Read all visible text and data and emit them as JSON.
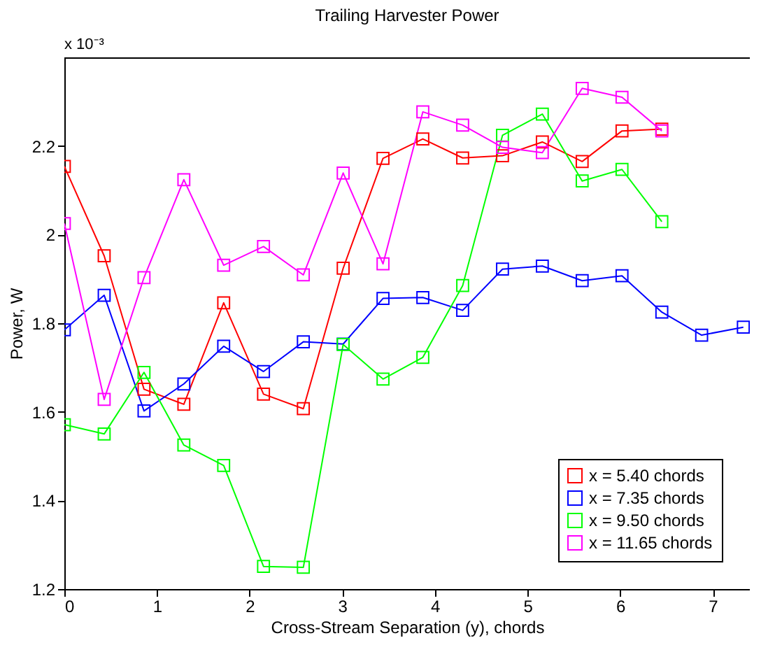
{
  "chart_data": {
    "type": "line",
    "title": "Trailing Harvester Power",
    "xlabel": "Cross-Stream Separation (y), chords",
    "ylabel": "Power, W",
    "annotations": [
      "x 10⁻³"
    ],
    "xlim": [
      0,
      7.4
    ],
    "xticks": [
      0,
      1,
      2,
      3,
      4,
      5,
      6,
      7
    ],
    "ylim": [
      1.2,
      2.4
    ],
    "yticks": [
      1.2,
      1.4,
      1.6,
      1.8,
      2,
      2.2
    ],
    "grid": false,
    "legend": "bottom right",
    "marker": "square",
    "line_style": "solid",
    "series": [
      {
        "name": "x = 5.40 chords",
        "color": "#ff0000",
        "x": [
          0,
          0.43,
          0.86,
          1.29,
          1.72,
          2.15,
          2.58,
          3.01,
          3.44,
          3.87,
          4.3,
          4.73,
          5.16,
          5.59,
          6.02,
          6.45
        ],
        "values": [
          2.154,
          1.952,
          1.651,
          1.617,
          1.846,
          1.64,
          1.607,
          1.924,
          2.172,
          2.216,
          2.173,
          2.178,
          2.209,
          2.165,
          2.234,
          2.238
        ]
      },
      {
        "name": "x = 7.35 chords",
        "color": "#0000ff",
        "x": [
          0,
          0.43,
          0.86,
          1.29,
          1.72,
          2.15,
          2.58,
          3.01,
          3.44,
          3.87,
          4.3,
          4.73,
          5.16,
          5.59,
          6.02,
          6.45,
          6.88,
          7.33
        ],
        "values": [
          1.785,
          1.863,
          1.602,
          1.663,
          1.748,
          1.691,
          1.758,
          1.753,
          1.856,
          1.858,
          1.829,
          1.922,
          1.929,
          1.896,
          1.907,
          1.825,
          1.773,
          1.791
        ]
      },
      {
        "name": "x = 9.50 chords",
        "color": "#00ff00",
        "x": [
          0,
          0.43,
          0.86,
          1.29,
          1.72,
          2.15,
          2.58,
          3.01,
          3.44,
          3.87,
          4.3,
          4.73,
          5.16,
          5.59,
          6.02,
          6.45
        ],
        "values": [
          1.571,
          1.55,
          1.689,
          1.525,
          1.479,
          1.251,
          1.249,
          1.752,
          1.674,
          1.723,
          1.885,
          2.224,
          2.272,
          2.121,
          2.147,
          2.029
        ]
      },
      {
        "name": "x = 11.65 chords",
        "color": "#ff00ff",
        "x": [
          0,
          0.43,
          0.86,
          1.29,
          1.72,
          2.15,
          2.58,
          3.01,
          3.44,
          3.87,
          4.3,
          4.73,
          5.16,
          5.59,
          6.02,
          6.45
        ],
        "values": [
          2.025,
          1.628,
          1.903,
          2.124,
          1.931,
          1.973,
          1.909,
          2.139,
          1.934,
          2.277,
          2.247,
          2.197,
          2.185,
          2.33,
          2.31,
          2.234
        ]
      }
    ]
  }
}
